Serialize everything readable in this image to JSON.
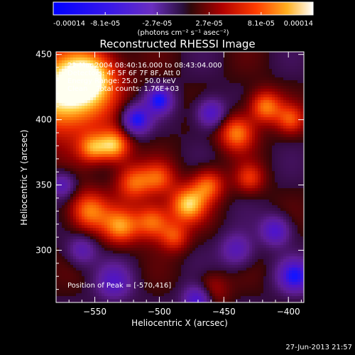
{
  "colorbar": {
    "tick_labels": [
      "-0.00014",
      "-8.1e-05",
      "-2.7e-05",
      "2.7e-05",
      "8.1e-05",
      "0.00014"
    ],
    "units_label": "(photons cm⁻² s⁻¹ asec⁻²)",
    "range": [
      -0.00014,
      0.00014
    ]
  },
  "plot": {
    "title": "Reconstructed RHESSI Image",
    "info_lines": [
      "22-Mar-2004 08:40:16.000 to 08:43:04.000",
      "Detectors: 4F 5F 6F 7F 8F, Att 0",
      "Energy Range: 25.0 - 50.0 keV",
      "Clean    Total counts: 1.76E+03"
    ],
    "peak_label": "Position of Peak = [-570,416]"
  },
  "footer": {
    "timestamp": "27-Jun-2013 21:57"
  },
  "chart_data": {
    "type": "heatmap",
    "title": "Reconstructed RHESSI Image",
    "xlabel": "Heliocentric X (arcsec)",
    "ylabel": "Heliocentric Y (arcsec)",
    "xlim": [
      -580,
      -388
    ],
    "ylim": [
      260,
      452
    ],
    "x_ticks": [
      -550,
      -500,
      -450,
      -400
    ],
    "y_ticks": [
      300,
      350,
      400,
      450
    ],
    "x_tick_labels": [
      "−550",
      "−500",
      "−450",
      "−400"
    ],
    "y_tick_labels": [
      "300",
      "350",
      "400",
      "450"
    ],
    "peak": [
      -570,
      416
    ],
    "colormap": "red-temperature / blue-purple diverging",
    "blobs": [
      {
        "x": -572,
        "y": 420,
        "sigma": 22,
        "amp": 1.35
      },
      {
        "x": -550,
        "y": 435,
        "sigma": 14,
        "amp": 0.7
      },
      {
        "x": -535,
        "y": 380,
        "sigma": 9,
        "amp": 1.0
      },
      {
        "x": -552,
        "y": 378,
        "sigma": 8,
        "amp": 0.7
      },
      {
        "x": -520,
        "y": 352,
        "sigma": 10,
        "amp": 0.75
      },
      {
        "x": -500,
        "y": 355,
        "sigma": 9,
        "amp": 0.6
      },
      {
        "x": -555,
        "y": 330,
        "sigma": 11,
        "amp": 0.85
      },
      {
        "x": -530,
        "y": 318,
        "sigma": 10,
        "amp": 0.8
      },
      {
        "x": -505,
        "y": 322,
        "sigma": 10,
        "amp": 0.85
      },
      {
        "x": -478,
        "y": 335,
        "sigma": 10,
        "amp": 1.0
      },
      {
        "x": -462,
        "y": 350,
        "sigma": 9,
        "amp": 0.75
      },
      {
        "x": -488,
        "y": 310,
        "sigma": 8,
        "amp": 0.6
      },
      {
        "x": -440,
        "y": 390,
        "sigma": 10,
        "amp": 0.85
      },
      {
        "x": -418,
        "y": 410,
        "sigma": 9,
        "amp": 0.85
      },
      {
        "x": -398,
        "y": 400,
        "sigma": 8,
        "amp": 0.6
      },
      {
        "x": -430,
        "y": 355,
        "sigma": 8,
        "amp": 0.55
      },
      {
        "x": -460,
        "y": 270,
        "sigma": 9,
        "amp": 0.45
      },
      {
        "x": -410,
        "y": 315,
        "sigma": 8,
        "amp": -0.75
      },
      {
        "x": -395,
        "y": 280,
        "sigma": 9,
        "amp": -0.9
      },
      {
        "x": -518,
        "y": 400,
        "sigma": 8,
        "amp": -1.0
      },
      {
        "x": -500,
        "y": 415,
        "sigma": 7,
        "amp": -0.9
      },
      {
        "x": -460,
        "y": 405,
        "sigma": 8,
        "amp": -0.8
      },
      {
        "x": -535,
        "y": 275,
        "sigma": 10,
        "amp": -0.6
      },
      {
        "x": -470,
        "y": 262,
        "sigma": 8,
        "amp": -0.9
      },
      {
        "x": -440,
        "y": 300,
        "sigma": 9,
        "amp": -0.6
      },
      {
        "x": -575,
        "y": 350,
        "sigma": 7,
        "amp": -0.6
      },
      {
        "x": -560,
        "y": 300,
        "sigma": 8,
        "amp": -0.55
      }
    ]
  }
}
